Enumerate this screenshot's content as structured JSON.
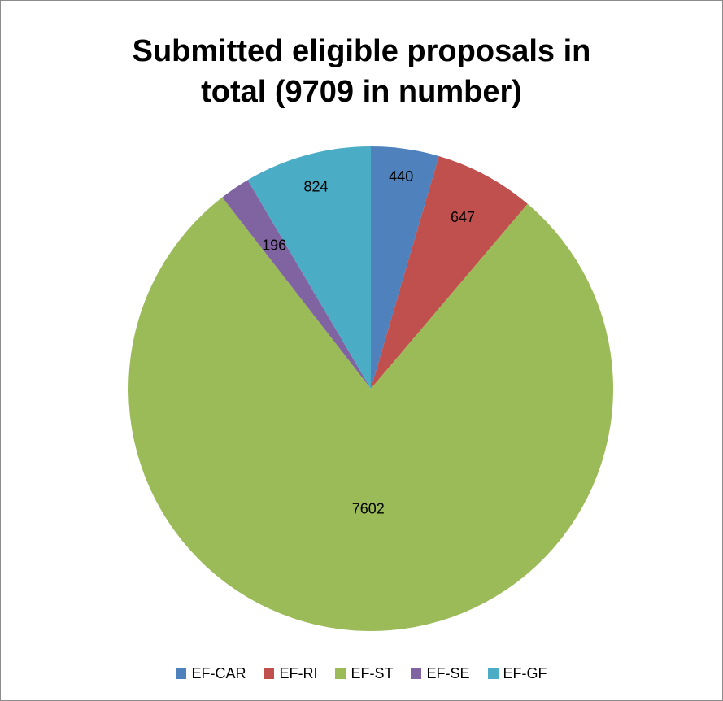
{
  "chart_data": {
    "type": "pie",
    "title_lines": [
      "Submitted eligible proposals in",
      "total (9709 in number)"
    ],
    "categories": [
      "EF-CAR",
      "EF-RI",
      "EF-ST",
      "EF-SE",
      "EF-GF"
    ],
    "values": [
      440,
      647,
      7602,
      196,
      824
    ],
    "data_labels": [
      "440",
      "647",
      "7602",
      "196",
      "824"
    ],
    "colors": [
      "#4F81BD",
      "#C0504D",
      "#9BBB59",
      "#8064A2",
      "#4BACC6"
    ],
    "start_angle": "12 o'clock",
    "direction": "clockwise",
    "legend_position": "bottom"
  }
}
